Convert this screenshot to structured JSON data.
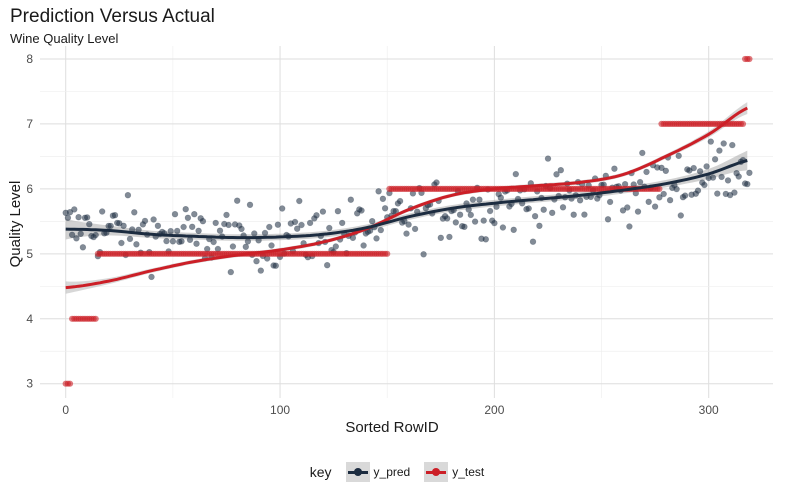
{
  "chart_data": {
    "type": "scatter",
    "title": "Prediction Versus Actual",
    "subtitle": "Wine Quality Level",
    "xlabel": "Sorted RowID",
    "ylabel": "Quality Level",
    "xlim": [
      -12,
      330
    ],
    "ylim": [
      2.78,
      8.2
    ],
    "x_ticks": [
      0,
      100,
      200,
      300
    ],
    "y_ticks": [
      3,
      4,
      5,
      6,
      7,
      8
    ],
    "legend_title": "key",
    "legend_position": "bottom",
    "n_points": 320,
    "series": [
      {
        "name": "y_pred",
        "color": "#1c2c40",
        "trend_x": [
          0,
          20,
          40,
          60,
          80,
          100,
          120,
          140,
          160,
          180,
          200,
          220,
          240,
          260,
          280,
          300,
          320
        ],
        "trend_y": [
          5.38,
          5.36,
          5.3,
          5.27,
          5.25,
          5.26,
          5.3,
          5.4,
          5.57,
          5.7,
          5.78,
          5.84,
          5.9,
          5.98,
          6.08,
          6.23,
          6.45
        ],
        "spread": 0.33
      },
      {
        "name": "y_test",
        "color": "#cc1f27",
        "steps": [
          {
            "label": 3,
            "x_start": 0,
            "x_end": 2
          },
          {
            "label": 4,
            "x_start": 3,
            "x_end": 14
          },
          {
            "label": 5,
            "x_start": 15,
            "x_end": 150
          },
          {
            "label": 6,
            "x_start": 151,
            "x_end": 277
          },
          {
            "label": 7,
            "x_start": 278,
            "x_end": 316
          },
          {
            "label": 8,
            "x_start": 317,
            "x_end": 319
          }
        ],
        "trend_x": [
          0,
          20,
          40,
          60,
          80,
          100,
          120,
          140,
          160,
          180,
          200,
          220,
          240,
          260,
          280,
          300,
          320
        ],
        "trend_y": [
          4.48,
          4.58,
          4.74,
          4.88,
          4.98,
          5.06,
          5.18,
          5.38,
          5.68,
          5.9,
          6.0,
          6.05,
          6.1,
          6.22,
          6.5,
          6.84,
          7.27
        ]
      }
    ]
  }
}
